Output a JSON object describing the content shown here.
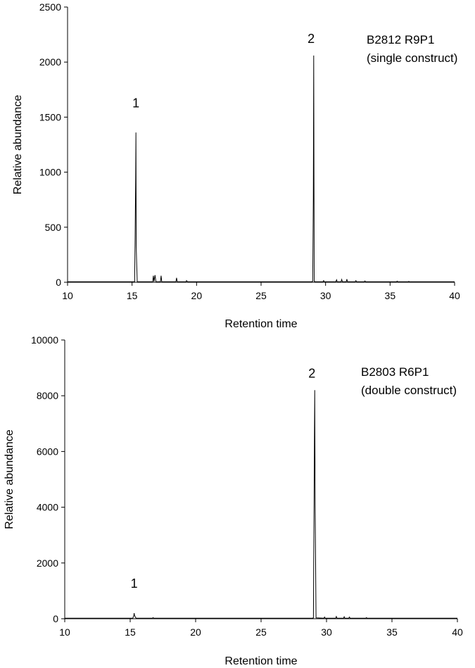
{
  "chart_data": [
    {
      "type": "line",
      "title": "",
      "xlabel": "Retention time",
      "ylabel": "Relative abundance",
      "xlim": [
        10,
        40
      ],
      "ylim": [
        0,
        2500
      ],
      "xticks": [
        "10",
        "15",
        "20",
        "25",
        "30",
        "35",
        "40"
      ],
      "yticks": [
        "0",
        "500",
        "1000",
        "1500",
        "2000",
        "2500"
      ],
      "grid": false,
      "annotations": [
        "B2812 R9P1",
        "(single construct)"
      ],
      "peak_labels": [
        {
          "text": "1",
          "x": 15.3,
          "y": 1360
        },
        {
          "text": "2",
          "x": 29.1,
          "y": 2060
        }
      ],
      "series": [
        {
          "name": "",
          "x": [
            10,
            15.2,
            15.28,
            15.3,
            15.32,
            15.4,
            16.6,
            16.65,
            16.7,
            16.78,
            16.85,
            16.9,
            17.2,
            17.25,
            17.3,
            18.4,
            18.45,
            18.5,
            19.2,
            19.22,
            19.3,
            28.9,
            29.0,
            29.05,
            29.08,
            29.1,
            29.12,
            29.2,
            29.8,
            29.85,
            29.9,
            30.8,
            30.85,
            30.9,
            31.2,
            31.25,
            31.3,
            31.6,
            31.65,
            31.7,
            32.3,
            32.35,
            32.4,
            33.0,
            33.05,
            33.1,
            35.5,
            35.55,
            35.6,
            36.4,
            36.45,
            36.5,
            38.0,
            40
          ],
          "values": [
            5,
            5,
            950,
            1360,
            330,
            5,
            5,
            60,
            5,
            65,
            5,
            5,
            5,
            60,
            5,
            5,
            40,
            5,
            5,
            15,
            5,
            5,
            8,
            760,
            2060,
            920,
            8,
            5,
            5,
            15,
            5,
            5,
            22,
            5,
            5,
            25,
            5,
            5,
            28,
            5,
            5,
            15,
            5,
            5,
            12,
            5,
            5,
            10,
            5,
            5,
            8,
            5,
            5,
            5
          ]
        }
      ]
    },
    {
      "type": "line",
      "title": "",
      "xlabel": "Retention time",
      "ylabel": "Relative abundance",
      "xlim": [
        10,
        40
      ],
      "ylim": [
        0,
        10000
      ],
      "xticks": [
        "10",
        "15",
        "20",
        "25",
        "30",
        "35",
        "40"
      ],
      "yticks": [
        "0",
        "2000",
        "4000",
        "6000",
        "8000",
        "10000"
      ],
      "grid": false,
      "annotations": [
        "B2803 R6P1",
        "(double construct)"
      ],
      "peak_labels": [
        {
          "text": "1",
          "x": 15.3,
          "y": 200
        },
        {
          "text": "2",
          "x": 29.1,
          "y": 8200
        }
      ],
      "series": [
        {
          "name": "",
          "x": [
            10,
            15.2,
            15.28,
            15.3,
            15.35,
            15.45,
            16.7,
            16.75,
            16.8,
            28.9,
            29.0,
            29.02,
            29.05,
            29.08,
            29.1,
            29.13,
            29.2,
            29.8,
            29.85,
            29.9,
            30.7,
            30.75,
            30.8,
            31.3,
            31.35,
            31.4,
            31.7,
            31.75,
            31.8,
            33.0,
            33.05,
            33.1,
            40
          ],
          "values": [
            20,
            20,
            120,
            200,
            90,
            20,
            20,
            40,
            20,
            20,
            30,
            2000,
            4100,
            6800,
            8200,
            4100,
            30,
            20,
            60,
            20,
            20,
            80,
            20,
            20,
            70,
            20,
            20,
            60,
            20,
            20,
            40,
            20,
            20
          ]
        }
      ]
    }
  ]
}
